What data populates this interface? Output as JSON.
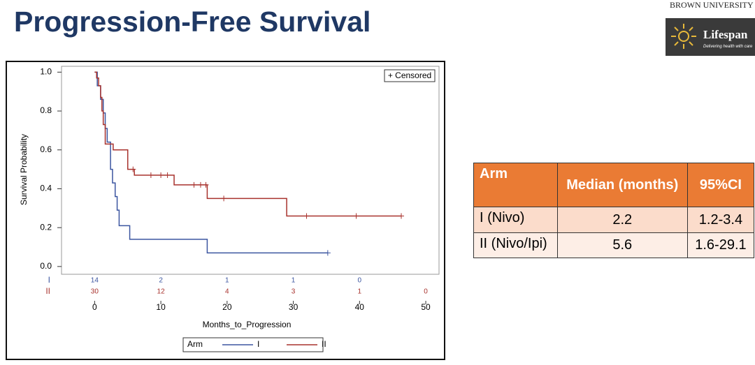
{
  "title": "Progression-Free Survival",
  "logos": {
    "brown": "BROWN UNIVERSITY",
    "lifespan": "Lifespan",
    "tagline": "Delivering health with care"
  },
  "chart_data": {
    "type": "step",
    "ylabel": "Survival Probability",
    "xlabel": "Months_to_Progression",
    "censored_label": "+ Censored",
    "legend_title": "Arm",
    "xlim": [
      -5,
      52
    ],
    "ylim": [
      -0.04,
      1.03
    ],
    "xticks": [
      0,
      10,
      20,
      30,
      40,
      50
    ],
    "yticks": [
      {
        "value": 0,
        "label": "0.0"
      },
      0.2,
      0.4,
      0.6,
      0.8,
      {
        "value": 1,
        "label": "1.0"
      }
    ],
    "series": [
      {
        "name": "I",
        "color": "#3b55a0",
        "x": [
          0,
          0.4,
          0.9,
          1.3,
          1.6,
          1.9,
          2.4,
          2.7,
          3.1,
          3.4,
          3.7,
          5.3,
          17.0
        ],
        "values": [
          1.0,
          0.93,
          0.86,
          0.79,
          0.71,
          0.64,
          0.5,
          0.43,
          0.36,
          0.29,
          0.21,
          0.14,
          0.07
        ],
        "censored_x": [
          35.2
        ],
        "at_risk_x": [
          0,
          10,
          20,
          30,
          40
        ],
        "at_risk": [
          14,
          2,
          1,
          1,
          0
        ]
      },
      {
        "name": "II",
        "color": "#a8322d",
        "x": [
          0,
          0.3,
          0.6,
          0.9,
          1.1,
          1.3,
          1.6,
          2.8,
          5.0,
          6.0,
          12.0,
          17.0,
          29.0
        ],
        "values": [
          1.0,
          0.97,
          0.93,
          0.87,
          0.8,
          0.73,
          0.63,
          0.6,
          0.5,
          0.47,
          0.42,
          0.35,
          0.26
        ],
        "censored_x": [
          5.8,
          8.5,
          10,
          11,
          15,
          16,
          16.8,
          19.5,
          32,
          39.5,
          46.3
        ],
        "at_risk_x": [
          0,
          10,
          20,
          30,
          40,
          50
        ],
        "at_risk": [
          30,
          12,
          4,
          3,
          1,
          0
        ]
      }
    ]
  },
  "table": {
    "header": [
      "Arm",
      "Median (months)",
      "95%CI"
    ],
    "rows": [
      [
        "I (Nivo)",
        "2.2",
        "1.2-3.4"
      ],
      [
        "II (Nivo/Ipi)",
        "5.6",
        "1.6-29.1"
      ]
    ]
  }
}
